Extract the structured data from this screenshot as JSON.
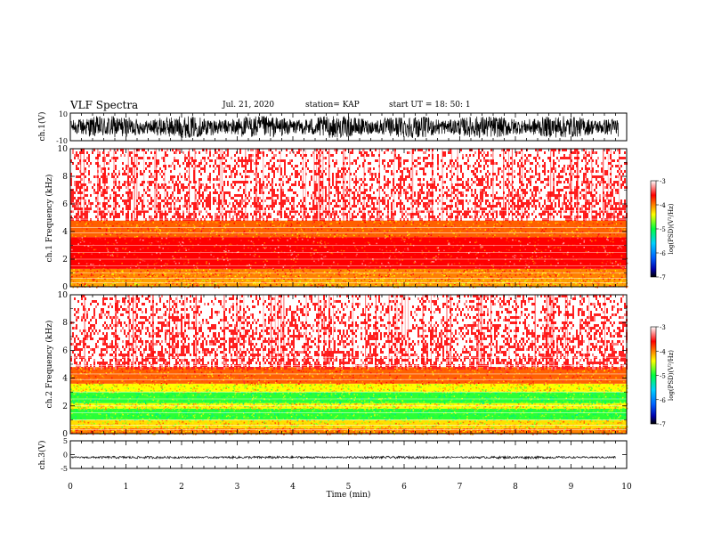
{
  "header": {
    "title": "VLF Spectra",
    "date": "Jul. 21, 2020",
    "station": "station= KAP",
    "start_ut": "start UT =  18: 50: 1"
  },
  "chart_data": [
    {
      "type": "line",
      "id": "ch1-waveform",
      "ylabel": "ch.1(V)",
      "ylim": [
        -10,
        10
      ],
      "yticks": [
        "10",
        "-10"
      ],
      "xlim": [
        0,
        10
      ],
      "signal": "dense oscillation approx. -8 to 8 V"
    },
    {
      "type": "heatmap",
      "id": "ch1-spectrogram",
      "ylabel": "ch.1 Frequency (kHz)",
      "ylim": [
        0,
        10
      ],
      "yticks": [
        "0",
        "2",
        "4",
        "6",
        "8",
        "10"
      ],
      "xlim": [
        0,
        10
      ],
      "bands": [
        {
          "from": 0,
          "to": 0.6,
          "level": -4.1
        },
        {
          "from": 0.6,
          "to": 1.3,
          "level": -4.0
        },
        {
          "from": 1.3,
          "to": 3.6,
          "level": -3.6
        },
        {
          "from": 3.6,
          "to": 4.8,
          "level": -3.9
        },
        {
          "from": 4.8,
          "to": 10,
          "level": -3.1
        }
      ],
      "colorbar": {
        "label": "log(PSD)(V²/Hz)",
        "range": [
          -7,
          -3
        ],
        "ticks": [
          "-3",
          "-4",
          "-5",
          "-6",
          "-7"
        ]
      }
    },
    {
      "type": "heatmap",
      "id": "ch2-spectrogram",
      "ylabel": "ch.2 Frequency (kHz)",
      "ylim": [
        0,
        10
      ],
      "yticks": [
        "0",
        "2",
        "4",
        "6",
        "8",
        "10"
      ],
      "xlim": [
        0,
        10
      ],
      "bands": [
        {
          "from": 0,
          "to": 0.4,
          "level": -4.0
        },
        {
          "from": 0.4,
          "to": 1.0,
          "level": -4.3
        },
        {
          "from": 1.0,
          "to": 1.8,
          "level": -4.9
        },
        {
          "from": 1.8,
          "to": 2.2,
          "level": -4.4
        },
        {
          "from": 2.2,
          "to": 3.0,
          "level": -4.9
        },
        {
          "from": 3.0,
          "to": 3.6,
          "level": -4.4
        },
        {
          "from": 3.6,
          "to": 4.8,
          "level": -3.9
        },
        {
          "from": 4.8,
          "to": 10,
          "level": -3.1
        }
      ],
      "colorbar": {
        "label": "log(PSD)(V²/Hz)",
        "range": [
          -7,
          -3
        ],
        "ticks": [
          "-3",
          "-4",
          "-5",
          "-6",
          "-7"
        ]
      }
    },
    {
      "type": "line",
      "id": "ch3-waveform",
      "ylabel": "ch.3(V)",
      "ylim": [
        -5,
        5
      ],
      "yticks": [
        "5",
        "0",
        "-5"
      ],
      "xlim": [
        0,
        9.8
      ],
      "signal": "dense oscillation approx. -1.5 to -0.5 V"
    }
  ],
  "xaxis": {
    "label": "Time (min)",
    "ticks": [
      "0",
      "1",
      "2",
      "3",
      "4",
      "5",
      "6",
      "7",
      "8",
      "9",
      "10"
    ]
  }
}
